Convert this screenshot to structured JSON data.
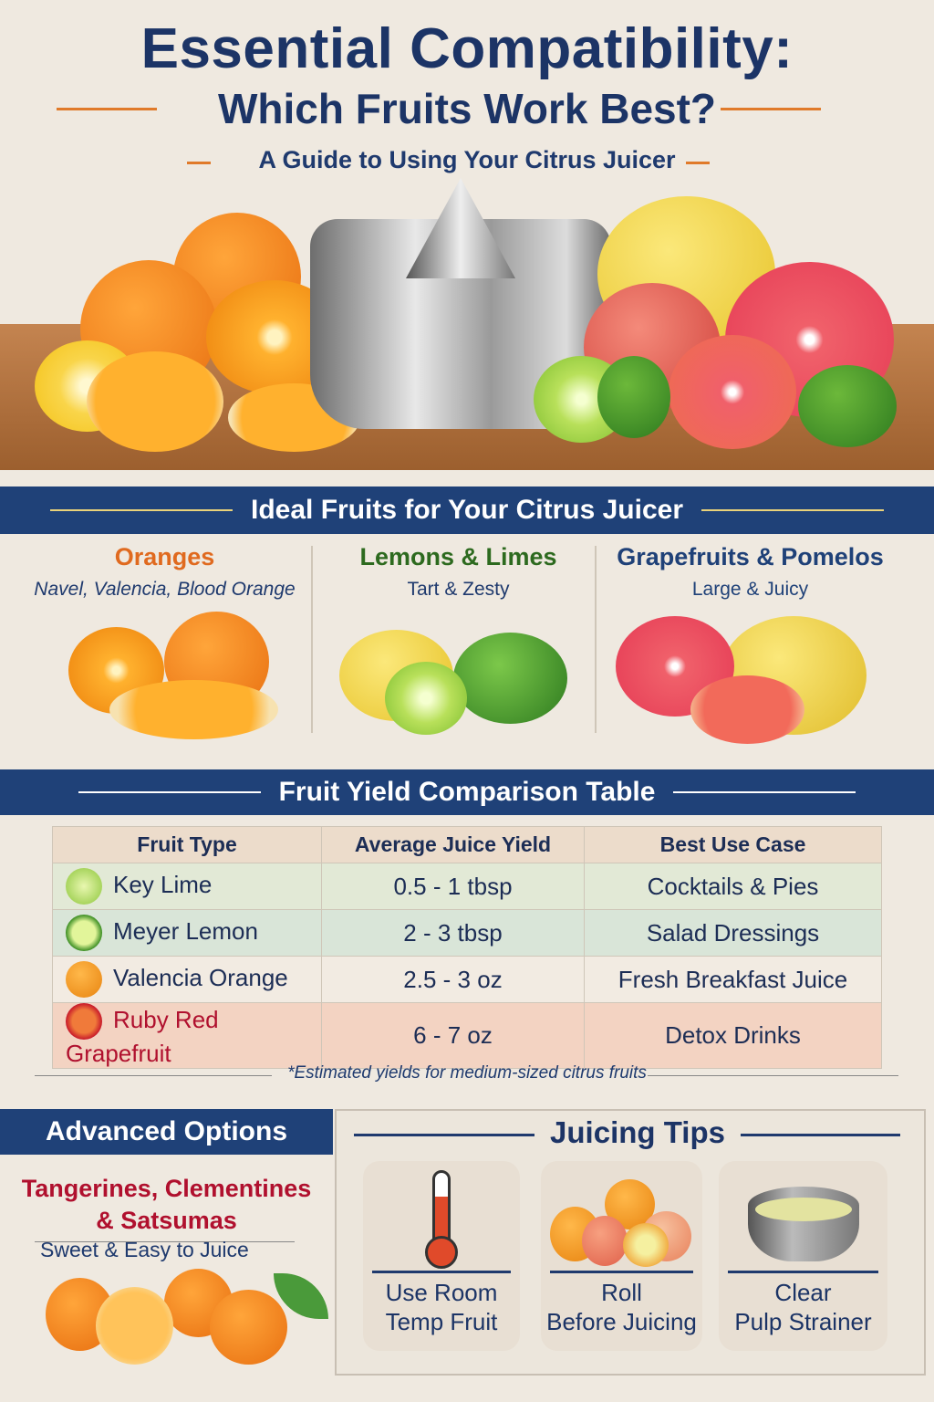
{
  "header": {
    "title_line1": "Essential Compatibility:",
    "title_line2": "Which Fruits Work Best?",
    "subtitle": "A Guide to Using Your Citrus Juicer"
  },
  "colors": {
    "navy": "#1f4178",
    "accent_orange": "#e07a2a",
    "red": "#b0102e"
  },
  "ideal": {
    "banner": "Ideal Fruits for Your Citrus Juicer",
    "columns": [
      {
        "name": "Oranges",
        "desc": "Navel, Valencia, Blood Orange",
        "color": "#e06a1f"
      },
      {
        "name": "Lemons & Limes",
        "desc": "Tart & Zesty",
        "color": "#2d6a1f"
      },
      {
        "name": "Grapefruits & Pomelos",
        "desc": "Large & Juicy",
        "color": "#1f4178"
      }
    ]
  },
  "table": {
    "banner": "Fruit Yield Comparison Table",
    "headers": [
      "Fruit Type",
      "Average Juice Yield",
      "Best Use Case"
    ],
    "rows": [
      {
        "fruit": "Key Lime",
        "yield": "0.5 - 1 tbsp",
        "use": "Cocktails & Pies",
        "icon": "lime-icon"
      },
      {
        "fruit": "Meyer Lemon",
        "yield": "2 - 3 tbsp",
        "use": "Salad Dressings",
        "icon": "lemon-icon"
      },
      {
        "fruit": "Valencia Orange",
        "yield": "2.5 - 3 oz",
        "use": "Fresh Breakfast Juice",
        "icon": "orange-icon"
      },
      {
        "fruit": "Ruby Red Grapefruit",
        "yield": "6 - 7 oz",
        "use": "Detox Drinks",
        "icon": "grapefruit-icon"
      }
    ],
    "footnote": "*Estimated yields for medium-sized citrus fruits"
  },
  "advanced": {
    "title": "Advanced Options",
    "fruits_line1": "Tangerines, Clementines",
    "fruits_line2": "& Satsumas",
    "desc": "Sweet & Easy to Juice"
  },
  "tips": {
    "title": "Juicing Tips",
    "items": [
      {
        "line1": "Use Room",
        "line2": "Temp Fruit",
        "icon": "thermometer-icon"
      },
      {
        "line1": "Roll",
        "line2": "Before Juicing",
        "icon": "citrus-pile-icon"
      },
      {
        "line1": "Clear",
        "line2": "Pulp Strainer",
        "icon": "strainer-bowl-icon"
      }
    ]
  }
}
